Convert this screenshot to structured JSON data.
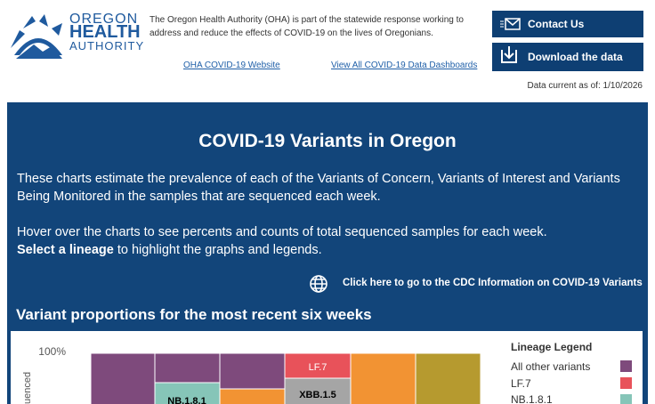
{
  "header": {
    "logo": {
      "line1": "OREGON",
      "line2": "HEALTH",
      "line3": "AUTHORITY"
    },
    "description": "The Oregon Health Authority (OHA) is part of the statewide response working to address and reduce the effects of COVID-19 on the lives of Oregonians.",
    "links": [
      "OHA COVID-19 Website",
      "View All COVID-19 Data Dashboards"
    ],
    "buttons": [
      "Contact Us",
      "Download the data"
    ],
    "data_current": "Data current as of: 1/10/2026"
  },
  "main": {
    "title": "COVID-19 Variants in Oregon",
    "intro": "These charts estimate the prevalence of each of the Variants of Concern, Variants of Interest and Variants Being Monitored  in the samples that are sequenced each week.",
    "hover_text": "Hover over the charts to see percents and counts of total sequenced samples for each week.",
    "select_bold": "Select a lineage",
    "select_rest": "to highlight the graphs and legends.",
    "cdc_link": "Click here to go to the CDC Information on COVID-19 Variants",
    "section_title": "Variant proportions for the most recent six weeks"
  },
  "chart": {
    "y_label": "uenced",
    "ytick": "100%",
    "bar_labels": [
      "NB.1.8.1",
      "LF.7",
      "XBB.1.5"
    ],
    "legend": {
      "title": "Lineage Legend",
      "items": [
        "All other variants",
        "LF.7",
        "NB.1.8.1"
      ]
    }
  }
}
